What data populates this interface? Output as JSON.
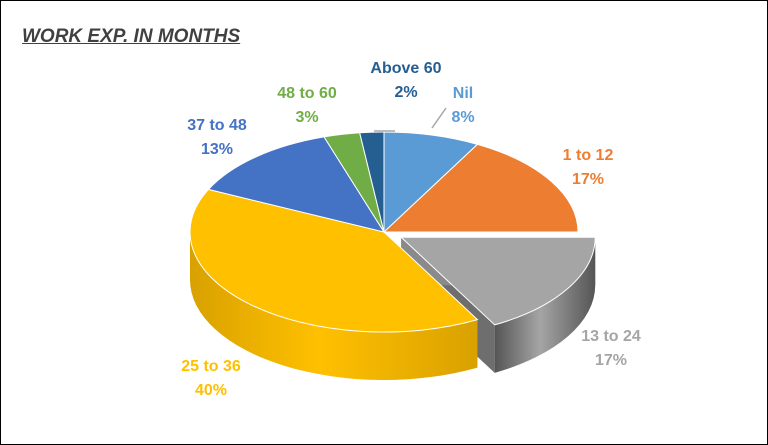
{
  "chart_data": {
    "type": "pie",
    "title": "WORK EXP. IN MONTHS",
    "slices": [
      {
        "category": "Nil",
        "value": 8,
        "label": "8%",
        "color": "#5b9bd5",
        "side": "#3f77ab"
      },
      {
        "category": "1 to 12",
        "value": 17,
        "label": "17%",
        "color": "#ed7d31",
        "side": "#b85c1c"
      },
      {
        "category": "13 to 24",
        "value": 17,
        "label": "17%",
        "color": "#a5a5a5",
        "side": "#555555",
        "exploded": true
      },
      {
        "category": "25 to 36",
        "value": 40,
        "label": "40%",
        "color": "#ffc000",
        "side": "#d9a100"
      },
      {
        "category": "37 to 48",
        "value": 13,
        "label": "13%",
        "color": "#4472c4",
        "side": "#2f5597"
      },
      {
        "category": "48 to 60",
        "value": 3,
        "label": "3%",
        "color": "#70ad47",
        "side": "#4e7f30"
      },
      {
        "category": "Above 60",
        "value": 2,
        "label": "2%",
        "color": "#255e91",
        "side": "#16406a"
      }
    ],
    "label_colors": {
      "Nil": "#5b9bd5",
      "1 to 12": "#ed7d31",
      "13 to 24": "#a5a5a5",
      "25 to 36": "#ffc000",
      "37 to 48": "#4472c4",
      "48 to 60": "#70ad47",
      "Above 60": "#255e91"
    }
  }
}
